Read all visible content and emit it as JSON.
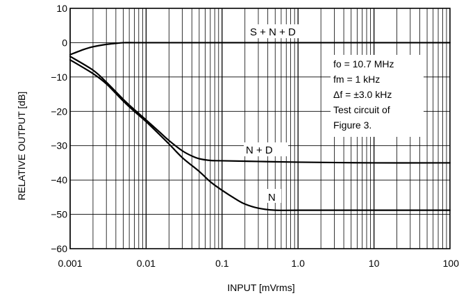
{
  "chart_data": {
    "type": "line",
    "xlabel": "INPUT [mVrms]",
    "ylabel": "RELATIVE OUTPUT [dB]",
    "x_scale": "log",
    "xlim": [
      0.001,
      100
    ],
    "ylim": [
      -60,
      10
    ],
    "x_ticks": [
      "0.001",
      "0.01",
      "0.1",
      "1.0",
      "10",
      "100"
    ],
    "y_ticks": [
      "10",
      "0",
      "−10",
      "−20",
      "−30",
      "−40",
      "−50",
      "−60"
    ],
    "grid": true,
    "series": [
      {
        "name": "S + N + D",
        "x": [
          0.001,
          0.0015,
          0.002,
          0.003,
          0.004,
          0.005,
          0.007,
          0.01,
          0.1,
          1,
          10,
          100
        ],
        "y": [
          -3.5,
          -2.0,
          -1.2,
          -0.5,
          -0.2,
          0,
          0,
          0,
          0,
          0,
          0,
          0
        ]
      },
      {
        "name": "N + D",
        "x": [
          0.001,
          0.002,
          0.003,
          0.005,
          0.007,
          0.01,
          0.015,
          0.02,
          0.03,
          0.04,
          0.05,
          0.07,
          0.1,
          0.3,
          1,
          10,
          100
        ],
        "y": [
          -4,
          -8,
          -11.5,
          -16.5,
          -19.5,
          -22.5,
          -26,
          -28.5,
          -31.5,
          -33,
          -33.8,
          -34.3,
          -34.4,
          -34.6,
          -34.8,
          -35,
          -35
        ]
      },
      {
        "name": "N",
        "x": [
          0.001,
          0.002,
          0.003,
          0.005,
          0.007,
          0.01,
          0.02,
          0.03,
          0.05,
          0.07,
          0.1,
          0.15,
          0.2,
          0.3,
          0.5,
          1,
          10,
          100
        ],
        "y": [
          -5,
          -9,
          -12,
          -17,
          -20,
          -23,
          -29.5,
          -33.5,
          -37.5,
          -40.5,
          -43,
          -45.5,
          -47,
          -48.2,
          -48.8,
          -48.8,
          -48.8,
          -48.8
        ]
      }
    ],
    "annotation": [
      "fo = 10.7 MHz",
      "fm = 1 kHz",
      "Δf = ±3.0 kHz",
      "Test circuit of",
      "Figure 3."
    ]
  }
}
